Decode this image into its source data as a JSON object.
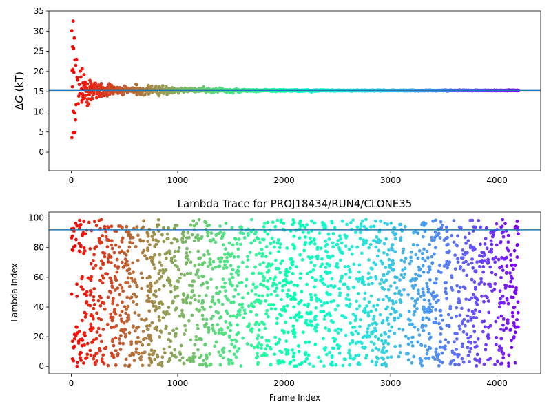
{
  "chart_data": [
    {
      "type": "scatter",
      "title": "",
      "xlabel": "",
      "ylabel": "ΔG (kT)",
      "ylabel_main": "Δ",
      "ylabel_italic": "G",
      "ylabel_unit": " (kT)",
      "xlim": [
        -210,
        4410
      ],
      "ylim": [
        -4.6,
        35
      ],
      "xticks": [
        0,
        1000,
        2000,
        3000,
        4000
      ],
      "yticks": [
        0,
        5,
        10,
        15,
        20,
        25,
        30,
        35
      ],
      "reference_line": {
        "y": 15.3,
        "color": "#1f77b4"
      },
      "colormap": "rainbow",
      "series": [
        {
          "frame_range": [
            0,
            4200
          ],
          "converged_value": 15.3,
          "early_points": [
            [
              5,
              30.1
            ],
            [
              12,
              26.1
            ],
            [
              18,
              32.5
            ],
            [
              22,
              25.7
            ],
            [
              28,
              28.3
            ],
            [
              8,
              20.3
            ],
            [
              15,
              20.5
            ],
            [
              25,
              19.8
            ],
            [
              35,
              22.9
            ],
            [
              42,
              21.5
            ],
            [
              10,
              16.2
            ],
            [
              20,
              10.1
            ],
            [
              30,
              9.8
            ],
            [
              5,
              3.6
            ],
            [
              18,
              4.8
            ],
            [
              32,
              4.9
            ],
            [
              40,
              8.0
            ],
            [
              45,
              11.8
            ],
            [
              50,
              23.0
            ],
            [
              55,
              18.5
            ],
            [
              60,
              17.9
            ],
            [
              65,
              12.0
            ],
            [
              70,
              13.9
            ],
            [
              75,
              16.8
            ],
            [
              80,
              14.5
            ],
            [
              85,
              20.1
            ],
            [
              90,
              18.6
            ],
            [
              95,
              15.7
            ],
            [
              100,
              12.8
            ],
            [
              110,
              13.6
            ],
            [
              120,
              19.2
            ],
            [
              130,
              17.4
            ],
            [
              140,
              14.1
            ],
            [
              150,
              16.9
            ],
            [
              160,
              13.2
            ],
            [
              175,
              17.8
            ],
            [
              190,
              16.4
            ],
            [
              205,
              14.3
            ],
            [
              220,
              17.1
            ],
            [
              240,
              15.0
            ],
            [
              260,
              16.6
            ],
            [
              280,
              14.6
            ],
            [
              300,
              15.9
            ],
            [
              330,
              14.2
            ],
            [
              360,
              15.5
            ],
            [
              400,
              16.1
            ],
            [
              450,
              14.8
            ],
            [
              500,
              16.4
            ],
            [
              560,
              15.1
            ],
            [
              620,
              15.9
            ]
          ]
        }
      ]
    },
    {
      "type": "scatter",
      "title": "Lambda Trace for PROJ18434/RUN4/CLONE35",
      "xlabel": "Frame Index",
      "ylabel": "Lambda Index",
      "xlim": [
        -210,
        4410
      ],
      "ylim": [
        -5,
        104
      ],
      "xticks": [
        0,
        1000,
        2000,
        3000,
        4000
      ],
      "yticks": [
        0,
        20,
        40,
        60,
        80,
        100
      ],
      "reference_line": {
        "y": 92,
        "color": "#1f77b4"
      },
      "colormap": "rainbow",
      "series": [
        {
          "frame_range": [
            0,
            4200
          ],
          "lambda_range": [
            0,
            99
          ]
        }
      ]
    }
  ]
}
